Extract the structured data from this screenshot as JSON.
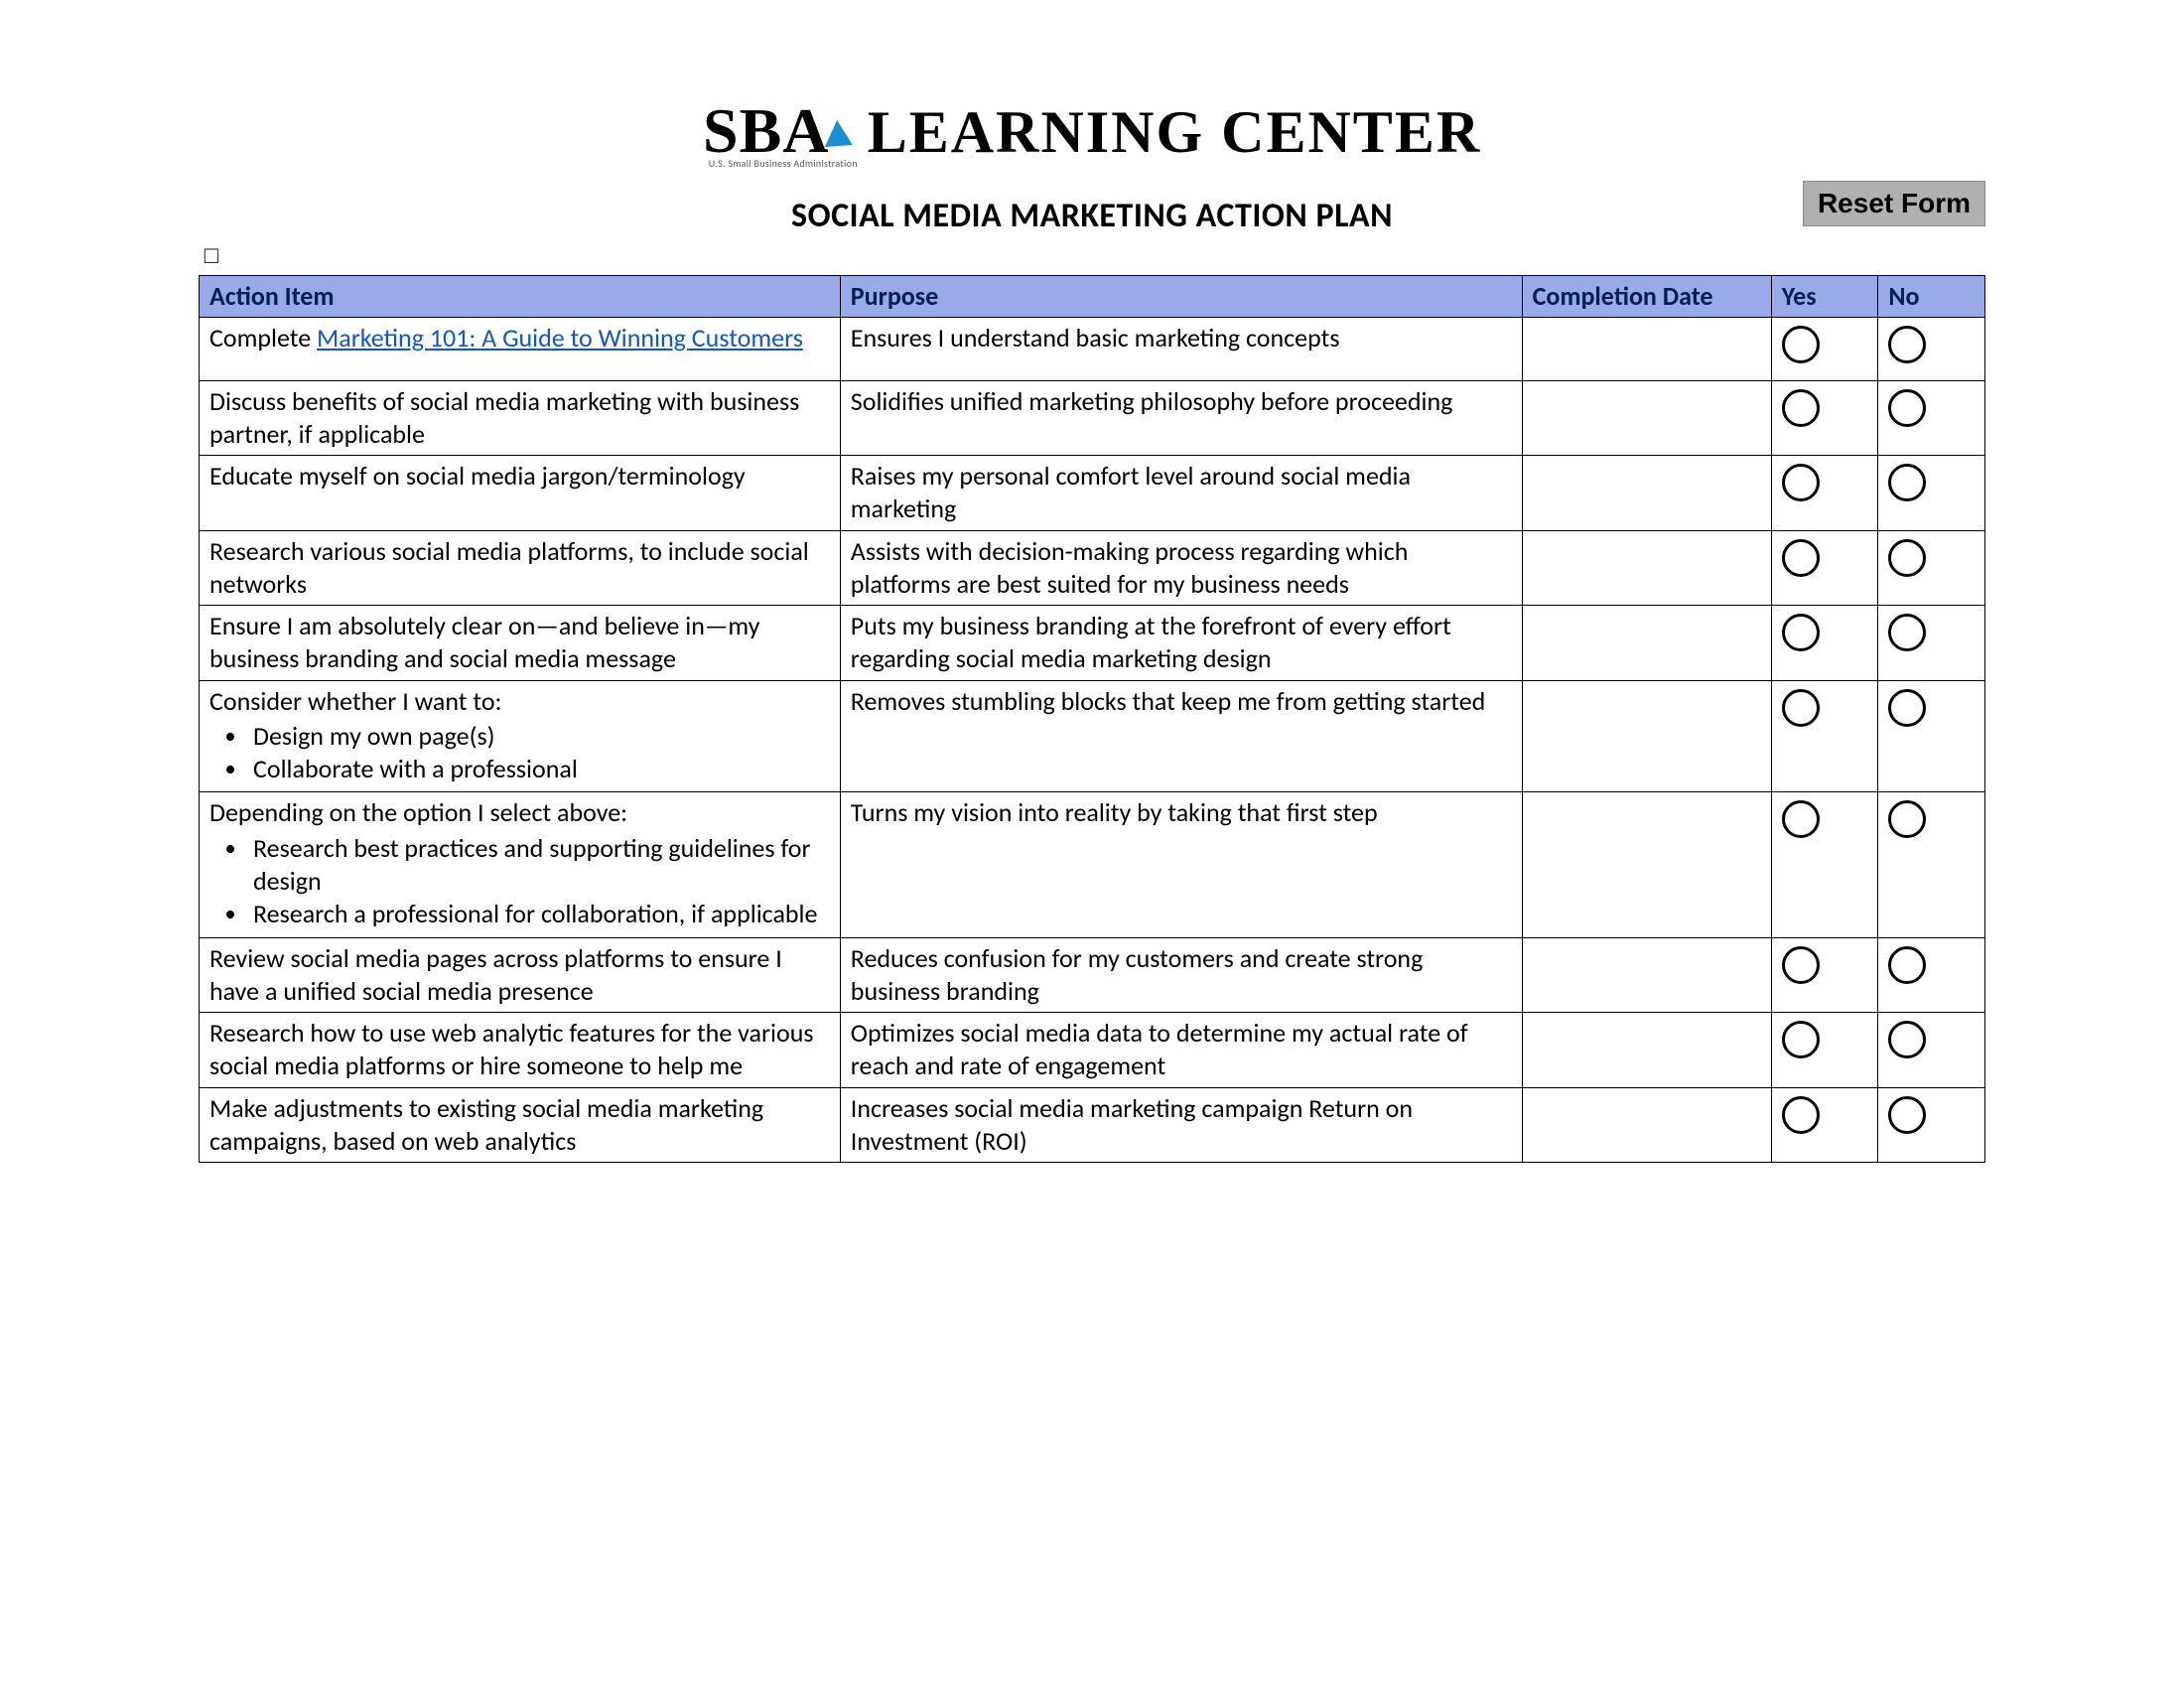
{
  "logo": {
    "sba": "SBA",
    "subtitle": "U.S. Small Business Administration",
    "learning": "LEARNING CENTER"
  },
  "title": "SOCIAL MEDIA MARKETING ACTION PLAN",
  "reset_label": "Reset Form",
  "checkbox_glyph": "☐",
  "colors": {
    "header_bg": "#9aaae8",
    "header_text": "#00205b",
    "border": "#000000",
    "link": "#1155cc",
    "reset_bg": "#b0b0b0",
    "logo_accent": "#1a8fd4"
  },
  "columns": {
    "action": "Action Item",
    "purpose": "Purpose",
    "date": "Completion Date",
    "yes": "Yes",
    "no": "No"
  },
  "rows": [
    {
      "action_prefix": "Complete ",
      "action_link": "Marketing 101: A Guide to Winning Customers",
      "purpose": "Ensures I understand basic marketing concepts"
    },
    {
      "action": "Discuss benefits of social media marketing with business partner, if applicable",
      "purpose": "Solidifies unified marketing philosophy before proceeding"
    },
    {
      "action": "Educate myself on social media jargon/terminology",
      "purpose": "Raises my personal comfort level around social media marketing"
    },
    {
      "action": "Research various social media platforms, to include social networks",
      "purpose": "Assists with decision-making process regarding which platforms are best suited for my business needs"
    },
    {
      "action": "Ensure I am absolutely clear on—and believe in—my business branding and social media message",
      "purpose": "Puts my business branding at the forefront of every effort regarding social media marketing design"
    },
    {
      "action_intro": "Consider whether I want to:",
      "bullets": [
        "Design my own page(s)",
        "Collaborate with a professional"
      ],
      "purpose": "Removes stumbling blocks that keep me from getting started"
    },
    {
      "action_intro": "Depending on the option I select above:",
      "bullets": [
        "Research best practices and supporting guidelines for design",
        "Research a professional for collaboration, if applicable"
      ],
      "purpose": "Turns my vision into reality by taking that first step"
    },
    {
      "action": "Review social media pages across platforms to ensure I have a unified social media presence",
      "purpose": "Reduces confusion for my customers and create strong business branding"
    },
    {
      "action": "Research how to use web analytic features for the various social media platforms or hire someone to help me",
      "purpose": "Optimizes social media data to determine my actual rate of reach and rate of engagement"
    },
    {
      "action": "Make adjustments to existing social media marketing campaigns, based on web analytics",
      "purpose": "Increases social media marketing campaign Return on Investment (ROI)"
    }
  ]
}
